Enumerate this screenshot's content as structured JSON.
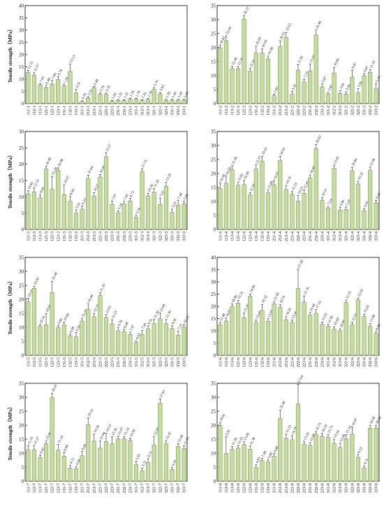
{
  "style": {
    "bar_color": "#c5dca0",
    "bar_stroke": "#6f8f3a",
    "error_color": "#222222",
    "text_color": "#111111"
  },
  "chart_data": [
    {
      "type": "bar",
      "ylabel": "Tensile strength（MPa）",
      "ylim": [
        0,
        40
      ],
      "yticks": [
        0,
        5,
        10,
        15,
        20,
        25,
        30,
        35,
        40
      ],
      "categories": [
        "111-1",
        "112-1",
        "113-1",
        "121-1",
        "122-1",
        "123-1",
        "131-1",
        "132-1",
        "133-1",
        "211-1",
        "212-1",
        "213-1",
        "221-1",
        "222-1",
        "223-1",
        "231-1",
        "232-1",
        "233-1",
        "311-1",
        "312-1",
        "313-1",
        "321-1",
        "322-1",
        "323-1",
        "331-1",
        "332-1",
        "333-1"
      ],
      "values": [
        12.73,
        11.57,
        7.65,
        6.48,
        7.94,
        9.78,
        7.2,
        13.13,
        4.32,
        0.79,
        2.23,
        6.48,
        3.79,
        3.79,
        1.03,
        1.32,
        1.32,
        1.79,
        1.79,
        1.32,
        1.7,
        5.76,
        3.93,
        1.39,
        1.44,
        1.44,
        1.44
      ],
      "errors": [
        0.8,
        1.0,
        0.5,
        1.0,
        1.5,
        1.2,
        0.6,
        3.0,
        1.5,
        0.4,
        0.5,
        0.5,
        0.5,
        0.5,
        0.3,
        0.3,
        0.3,
        0.4,
        0.4,
        0.3,
        0.4,
        0.8,
        0.6,
        0.4,
        0.3,
        0.3,
        0.3
      ]
    },
    {
      "type": "bar",
      "ylabel": "",
      "ylim": [
        0,
        35
      ],
      "yticks": [
        0,
        5,
        10,
        15,
        20,
        25,
        30,
        35
      ],
      "categories": [
        "111-2",
        "112-2",
        "113-2",
        "121-2",
        "122-2",
        "123-2",
        "131-2",
        "132-2",
        "133-2",
        "211-2",
        "212-2",
        "213-2",
        "221-2",
        "222-2",
        "223-2",
        "231-2",
        "232-2",
        "233-2",
        "311-2",
        "312-2",
        "313-2",
        "321-2",
        "322-2",
        "323-2",
        "331-2",
        "332-2",
        "333-2"
      ],
      "values": [
        19.82,
        22.44,
        12.49,
        12.38,
        30.17,
        11.58,
        18.03,
        18.03,
        16.0,
        2.82,
        20.37,
        23.63,
        3.32,
        11.92,
        7.73,
        11.69,
        24.48,
        5.87,
        3.42,
        10.96,
        3.64,
        3.44,
        9.47,
        3.8,
        9.97,
        11.16,
        5.26
      ],
      "errors": [
        1.0,
        1.8,
        0.8,
        0.8,
        1.2,
        1.0,
        2.5,
        1.5,
        1.0,
        0.6,
        2.0,
        1.8,
        1.0,
        2.0,
        1.0,
        2.5,
        1.8,
        1.2,
        0.6,
        2.0,
        1.0,
        0.8,
        2.5,
        1.5,
        0.8,
        1.0,
        2.0
      ]
    },
    {
      "type": "bar",
      "ylabel": "Tensile strength（MPa）",
      "ylim": [
        0,
        30
      ],
      "yticks": [
        0,
        5,
        10,
        15,
        20,
        25,
        30
      ],
      "categories": [
        "111-3",
        "112-3",
        "113-3",
        "121-3",
        "122-3",
        "123-3",
        "131-3",
        "132-3",
        "133-3",
        "211-3",
        "212-3",
        "213-3",
        "221-3",
        "222-3",
        "223-3",
        "231-3",
        "232-3",
        "233-3",
        "311-3",
        "312-3",
        "313-3",
        "321-3",
        "322-3",
        "323-3",
        "331-3",
        "332-3",
        "333-3"
      ],
      "values": [
        10.85,
        11.52,
        9.68,
        18.49,
        12.28,
        18.08,
        10.67,
        8.64,
        5.01,
        6.23,
        15.64,
        10.25,
        16.06,
        22.27,
        7.67,
        5.14,
        7.82,
        8.72,
        3.74,
        17.75,
        10.3,
        11.36,
        7.62,
        13.2,
        5.23,
        7.48,
        7.8
      ],
      "errors": [
        1.0,
        1.2,
        1.0,
        0.8,
        4.0,
        0.8,
        3.0,
        1.5,
        1.0,
        1.0,
        1.0,
        1.0,
        0.8,
        1.2,
        1.0,
        0.6,
        0.8,
        0.8,
        0.6,
        0.8,
        0.8,
        1.2,
        2.0,
        1.2,
        1.0,
        1.5,
        0.8
      ]
    },
    {
      "type": "bar",
      "ylabel": "",
      "ylim": [
        0,
        35
      ],
      "yticks": [
        0,
        5,
        10,
        15,
        20,
        25,
        30,
        35
      ],
      "categories": [
        "111-4",
        "112-4",
        "113-4",
        "121-4",
        "122-4",
        "123-4",
        "131-4",
        "132-4",
        "133-4",
        "211-4",
        "212-4",
        "213-4",
        "221-4",
        "222-4",
        "223-4",
        "231-4",
        "232-4",
        "233-4",
        "311-4",
        "312-4",
        "313-4",
        "321-4",
        "322-4",
        "323-4",
        "331-4",
        "332-4",
        "333-4"
      ],
      "values": [
        14.58,
        16.58,
        21.3,
        15.82,
        16.0,
        12.36,
        21.57,
        24.41,
        13.09,
        16.01,
        24.62,
        14.25,
        12.53,
        10.15,
        12.92,
        18.48,
        28.83,
        10.37,
        7.63,
        21.81,
        6.96,
        7.2,
        20.96,
        16.25,
        6.66,
        21.06,
        9.43
      ],
      "errors": [
        2.0,
        2.5,
        1.5,
        1.0,
        1.5,
        0.8,
        1.5,
        1.8,
        1.0,
        1.5,
        1.5,
        1.5,
        1.0,
        2.0,
        1.2,
        1.0,
        1.5,
        1.0,
        0.6,
        1.2,
        1.0,
        0.8,
        1.2,
        1.0,
        0.8,
        1.2,
        1.0
      ]
    },
    {
      "type": "bar",
      "ylabel": "Tensile strength（MPa）",
      "ylim": [
        0,
        35
      ],
      "yticks": [
        0,
        5,
        10,
        15,
        20,
        25,
        30,
        35
      ],
      "categories": [
        "111-5",
        "112-5",
        "113-5",
        "121-5",
        "122-5",
        "123-5",
        "131-5",
        "132-5",
        "133-5",
        "211-5",
        "212-5",
        "213-5",
        "221-5",
        "222-5",
        "223-5",
        "231-5",
        "232-5",
        "233-5",
        "311-5",
        "312-5",
        "313-5",
        "321-5",
        "322-5",
        "323-5",
        "331-5",
        "332-5",
        "333-5"
      ],
      "values": [
        19.16,
        23.92,
        10.41,
        10.96,
        22.48,
        9.86,
        10.86,
        6.99,
        6.59,
        12.25,
        16.48,
        13.79,
        21.35,
        13.55,
        11.23,
        8.78,
        8.48,
        7.47,
        4.63,
        7.44,
        9.51,
        11.3,
        13.08,
        11.3,
        9.56,
        7.15,
        10.22
      ],
      "errors": [
        1.2,
        0.8,
        0.6,
        4.0,
        4.0,
        0.8,
        1.0,
        0.6,
        1.5,
        1.0,
        2.0,
        1.2,
        1.0,
        1.0,
        1.5,
        1.2,
        0.8,
        0.8,
        0.6,
        1.5,
        1.0,
        1.5,
        2.0,
        1.5,
        1.0,
        1.5,
        0.8
      ]
    },
    {
      "type": "bar",
      "ylabel": "",
      "ylim": [
        0,
        40
      ],
      "yticks": [
        0,
        5,
        10,
        15,
        20,
        25,
        30,
        35,
        40
      ],
      "categories": [
        "111-6",
        "112-6",
        "113-6",
        "121-6",
        "122-6",
        "123-6",
        "131-6",
        "132-6",
        "133-6",
        "211-6",
        "212-6",
        "213-6",
        "221-6",
        "222-6",
        "223-6",
        "231-6",
        "232-6",
        "233-6",
        "311-6",
        "312-6",
        "313-6",
        "321-6",
        "322-6",
        "323-6",
        "331-6",
        "332-6",
        "333-6"
      ],
      "values": [
        12.48,
        14.01,
        19.96,
        21.31,
        15.3,
        24.08,
        13.45,
        18.32,
        13.92,
        21.0,
        19.7,
        14.56,
        13.46,
        27.28,
        21.76,
        16.44,
        17.15,
        12.65,
        11.86,
        10.69,
        10.06,
        21.55,
        12.54,
        22.63,
        15.83,
        11.99,
        8.96
      ],
      "errors": [
        1.0,
        1.2,
        1.0,
        1.2,
        2.0,
        1.0,
        1.0,
        2.5,
        1.0,
        1.0,
        1.0,
        1.2,
        1.0,
        8.0,
        2.5,
        1.0,
        1.5,
        1.0,
        0.8,
        1.0,
        0.8,
        1.0,
        1.0,
        0.8,
        1.0,
        1.0,
        0.8
      ]
    },
    {
      "type": "bar",
      "ylabel": "Tensile strength（MPa）",
      "ylim": [
        0,
        35
      ],
      "yticks": [
        0,
        5,
        10,
        15,
        20,
        25,
        30,
        35
      ],
      "categories": [
        "111-7",
        "112-7",
        "113-7",
        "121-7",
        "122-7",
        "123-7",
        "131-7",
        "132-7",
        "133-7",
        "211-7",
        "212-7",
        "213-7",
        "221-7",
        "222-7",
        "223-7",
        "231-7",
        "232-7",
        "233-7",
        "311-7",
        "312-7",
        "313-7",
        "321-7",
        "322-7",
        "323-7",
        "331-7",
        "332-7",
        "333-7"
      ],
      "values": [
        11.26,
        11.27,
        8.42,
        13.46,
        29.97,
        11.14,
        8.89,
        4.72,
        4.44,
        9.09,
        20.14,
        14.34,
        11.94,
        14.13,
        13.36,
        15.07,
        15.14,
        14.58,
        5.93,
        3.72,
        6.71,
        12.99,
        27.87,
        13.47,
        4.18,
        12.46,
        11.65
      ],
      "errors": [
        1.5,
        1.5,
        1.0,
        1.0,
        1.5,
        2.0,
        1.5,
        1.0,
        0.8,
        1.5,
        2.5,
        2.5,
        2.5,
        3.0,
        2.5,
        1.0,
        0.8,
        0.8,
        1.2,
        1.0,
        1.5,
        3.0,
        1.5,
        1.0,
        0.8,
        1.0,
        1.0
      ]
    },
    {
      "type": "bar",
      "ylabel": "",
      "ylim": [
        0,
        35
      ],
      "yticks": [
        0,
        5,
        10,
        15,
        20,
        25,
        30,
        35
      ],
      "categories": [
        "111-8",
        "112-8",
        "113-8",
        "121-8",
        "122-8",
        "123-8",
        "131-8",
        "132-8",
        "133-8",
        "211-8",
        "212-8",
        "213-8",
        "221-8",
        "222-8",
        "223-8",
        "231-8",
        "232-8",
        "233-8",
        "311-8",
        "312-8",
        "313-8",
        "321-8",
        "322-8",
        "323-8",
        "331-8",
        "332-8",
        "333-8"
      ],
      "values": [
        19.81,
        9.91,
        11.39,
        11.81,
        13.09,
        11.38,
        4.93,
        7.4,
        6.9,
        8.88,
        22.46,
        15.33,
        14.78,
        27.64,
        13.26,
        12.8,
        16.75,
        16.1,
        15.75,
        13.54,
        12.08,
        15.14,
        16.87,
        8.53,
        4.71,
        18.96,
        18.96
      ],
      "errors": [
        1.2,
        6.0,
        1.0,
        1.0,
        1.0,
        1.2,
        1.0,
        0.8,
        0.8,
        1.0,
        3.0,
        1.5,
        1.5,
        7.0,
        1.0,
        1.0,
        1.0,
        1.0,
        1.0,
        1.5,
        1.5,
        1.5,
        2.5,
        1.0,
        0.8,
        1.0,
        1.0
      ]
    }
  ]
}
